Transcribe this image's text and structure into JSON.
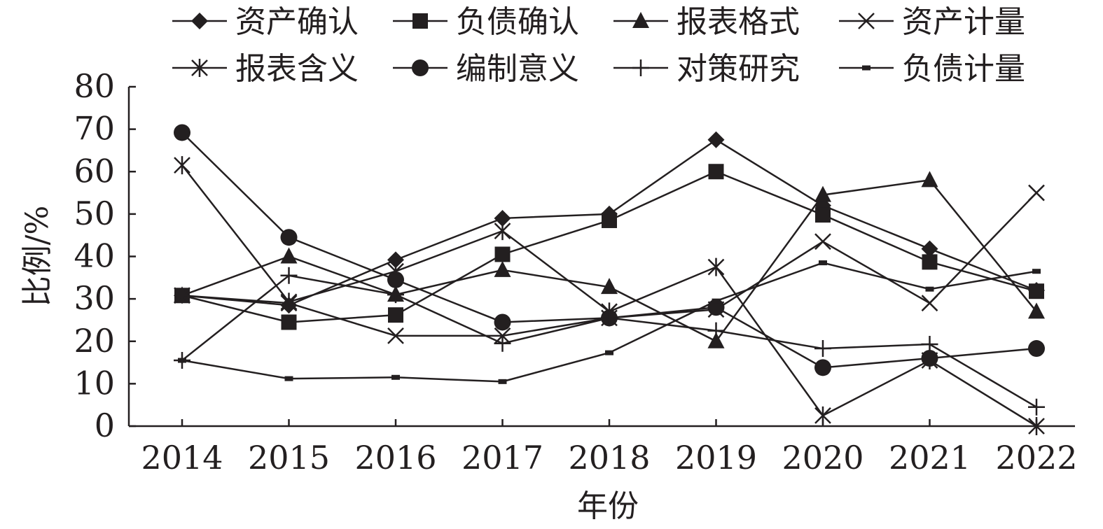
{
  "chart_data": {
    "type": "line",
    "xlabel": "年份",
    "ylabel": "比例/%",
    "ylim": [
      0,
      80
    ],
    "yticks": [
      0,
      10,
      20,
      30,
      40,
      50,
      60,
      70,
      80
    ],
    "x": [
      "2014",
      "2015",
      "2016",
      "2017",
      "2018",
      "2019",
      "2020",
      "2021",
      "2022"
    ],
    "grid": false,
    "legend_position": "top",
    "series": [
      {
        "name": "资产确认",
        "marker": "diamond",
        "values": [
          30.8,
          28.5,
          39.2,
          49.0,
          50.0,
          67.5,
          52.0,
          41.8,
          32.0
        ]
      },
      {
        "name": "负债确认",
        "marker": "square",
        "values": [
          30.8,
          24.5,
          26.2,
          40.5,
          48.5,
          60.0,
          49.8,
          38.7,
          31.8
        ]
      },
      {
        "name": "报表格式",
        "marker": "triangle",
        "values": [
          30.8,
          40.0,
          31.0,
          36.8,
          32.8,
          20.0,
          54.5,
          58.0,
          27.0
        ]
      },
      {
        "name": "资产计量",
        "marker": "x",
        "values": [
          30.8,
          29.0,
          21.3,
          21.3,
          25.5,
          27.5,
          43.5,
          29.0,
          55.0
        ]
      },
      {
        "name": "报表含义",
        "marker": "asterisk",
        "values": [
          61.5,
          29.3,
          36.5,
          46.0,
          27.0,
          37.5,
          2.5,
          15.5,
          0.0
        ]
      },
      {
        "name": "编制意义",
        "marker": "circle",
        "values": [
          69.2,
          44.5,
          34.5,
          24.5,
          25.5,
          28.0,
          13.8,
          16.0,
          18.3
        ]
      },
      {
        "name": "对策研究",
        "marker": "plus",
        "values": [
          15.5,
          35.5,
          31.0,
          19.5,
          25.5,
          22.5,
          18.3,
          19.3,
          4.5
        ]
      },
      {
        "name": "负债计量",
        "marker": "dash",
        "values": [
          15.5,
          11.2,
          11.5,
          10.5,
          17.3,
          29.5,
          38.5,
          32.3,
          36.5
        ]
      }
    ]
  }
}
